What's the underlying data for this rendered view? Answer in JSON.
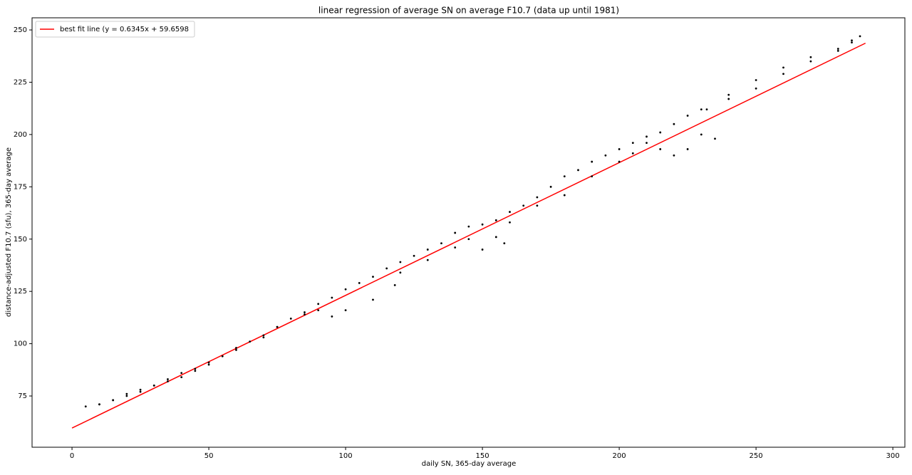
{
  "chart_data": {
    "type": "scatter",
    "title": "linear regression of average SN on average F10.7 (data up until 1981)",
    "x_label": "daily SN, 365-day average",
    "y_label": "distance-adjusted F10.7 (sfu), 365-day average",
    "xlim": [
      -14.6,
      304.4
    ],
    "ylim": [
      50.5,
      255.8
    ],
    "xticks": [
      0,
      50,
      100,
      150,
      200,
      250,
      300
    ],
    "yticks": [
      75,
      100,
      125,
      150,
      175,
      200,
      225,
      250
    ],
    "grid": false,
    "legend": "upper left",
    "series": [
      {
        "type": "line",
        "name": "best fit line (y = 0.6345x + 59.6598",
        "color": "#ff0000",
        "x": [
          0,
          290
        ],
        "values": [
          59.66,
          243.67
        ]
      },
      {
        "type": "scatter",
        "color": "#000000",
        "x": [
          5,
          10,
          15,
          20,
          25,
          30,
          35,
          40,
          45,
          50,
          55,
          60,
          65,
          70,
          75,
          80,
          85,
          90,
          95,
          100,
          105,
          110,
          115,
          120,
          125,
          130,
          135,
          140,
          145,
          150,
          155,
          160,
          165,
          170,
          175,
          180,
          185,
          190,
          195,
          200,
          205,
          210,
          215,
          220,
          225,
          230,
          240,
          250,
          260,
          270,
          280,
          285,
          288,
          285,
          280,
          270,
          260,
          250,
          240,
          232,
          235,
          230,
          225,
          220,
          215,
          210,
          205,
          200,
          190,
          180,
          170,
          160,
          155,
          158,
          150,
          145,
          140,
          130,
          120,
          118,
          110,
          100,
          95,
          90,
          85,
          75,
          70,
          60,
          50,
          45,
          40,
          35,
          30,
          25,
          20,
          15,
          10
        ],
        "values": [
          70,
          71,
          73,
          76,
          78,
          80,
          83,
          86,
          88,
          91,
          94,
          98,
          101,
          104,
          108,
          112,
          115,
          119,
          122,
          126,
          129,
          132,
          136,
          139,
          142,
          145,
          148,
          153,
          156,
          157,
          159,
          163,
          166,
          170,
          175,
          180,
          183,
          187,
          190,
          193,
          196,
          199,
          201,
          205,
          209,
          212,
          217,
          222,
          229,
          235,
          240,
          245,
          247,
          244,
          241,
          237,
          232,
          226,
          219,
          212,
          198,
          200,
          193,
          190,
          193,
          196,
          191,
          187,
          180,
          171,
          166,
          158,
          151,
          148,
          145,
          150,
          146,
          140,
          134,
          128,
          121,
          116,
          113,
          116,
          114,
          108,
          103,
          97,
          90,
          87,
          84,
          82,
          80,
          77,
          75,
          73,
          71
        ]
      }
    ]
  }
}
